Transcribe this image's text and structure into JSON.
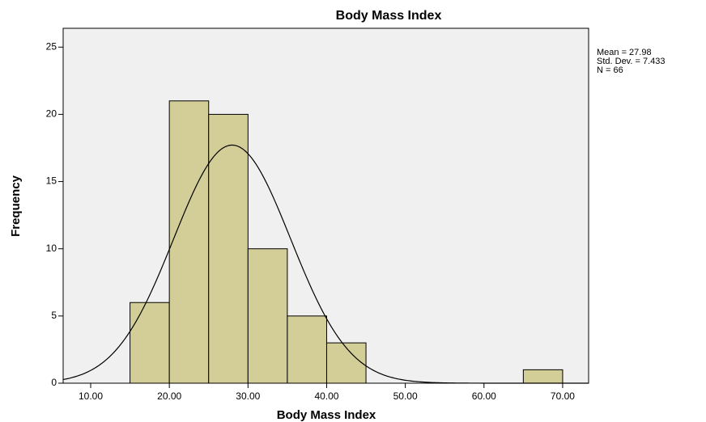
{
  "chart_data": {
    "type": "histogram",
    "title": "Body Mass Index",
    "xlabel": "Body Mass Index",
    "ylabel": "Frequency",
    "bins": [
      15,
      20,
      25,
      30,
      35,
      40,
      45,
      50,
      55,
      60,
      65,
      70
    ],
    "counts": [
      6,
      21,
      20,
      10,
      5,
      3,
      0,
      0,
      0,
      0,
      1
    ],
    "color": "#d3ce97",
    "background": "#f0f0f0",
    "xlim": [
      6.5,
      73.3
    ],
    "xticks": [
      {
        "value": 10,
        "label": "10.00"
      },
      {
        "value": 20,
        "label": "20.00"
      },
      {
        "value": 30,
        "label": "30.00"
      },
      {
        "value": 40,
        "label": "40.00"
      },
      {
        "value": 50,
        "label": "50.00"
      },
      {
        "value": 60,
        "label": "60.00"
      },
      {
        "value": 70,
        "label": "70.00"
      }
    ],
    "ylim": [
      0,
      26.4
    ],
    "yticks": [
      0,
      5,
      10,
      15,
      20,
      25
    ],
    "normal_curve": true,
    "stats": [
      {
        "value": 27.98,
        "label": "Mean = 27.98"
      },
      {
        "value": 7.433,
        "label": "Std. Dev. = 7.433"
      },
      {
        "value": 66,
        "label": "N = 66"
      }
    ]
  }
}
